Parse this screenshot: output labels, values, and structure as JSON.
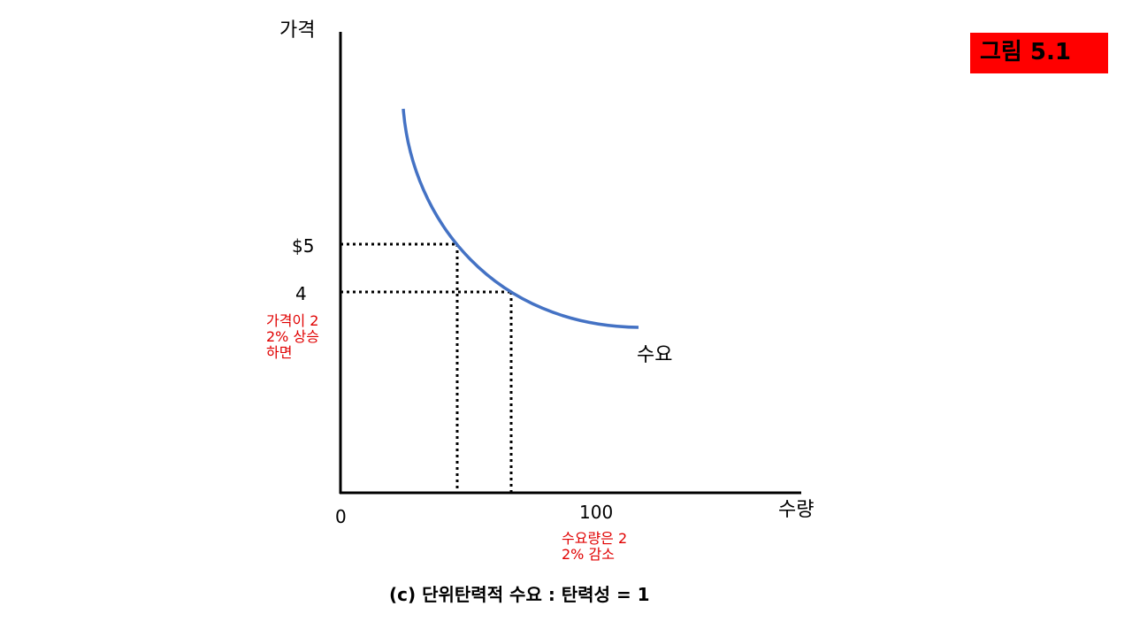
{
  "figure_label": "그림 5.1",
  "axes": {
    "y_label": "가격",
    "x_label": "수량",
    "origin": "0"
  },
  "price_labels": [
    "$5",
    "4"
  ],
  "quantity_label": "100",
  "curve_label": "수요",
  "notes": {
    "price_change": "가격이 22% 상승하면",
    "quantity_change": "수요량은 22% 감소"
  },
  "caption": "(c) 단위탄력적 수요 : 탄력성 = 1"
}
